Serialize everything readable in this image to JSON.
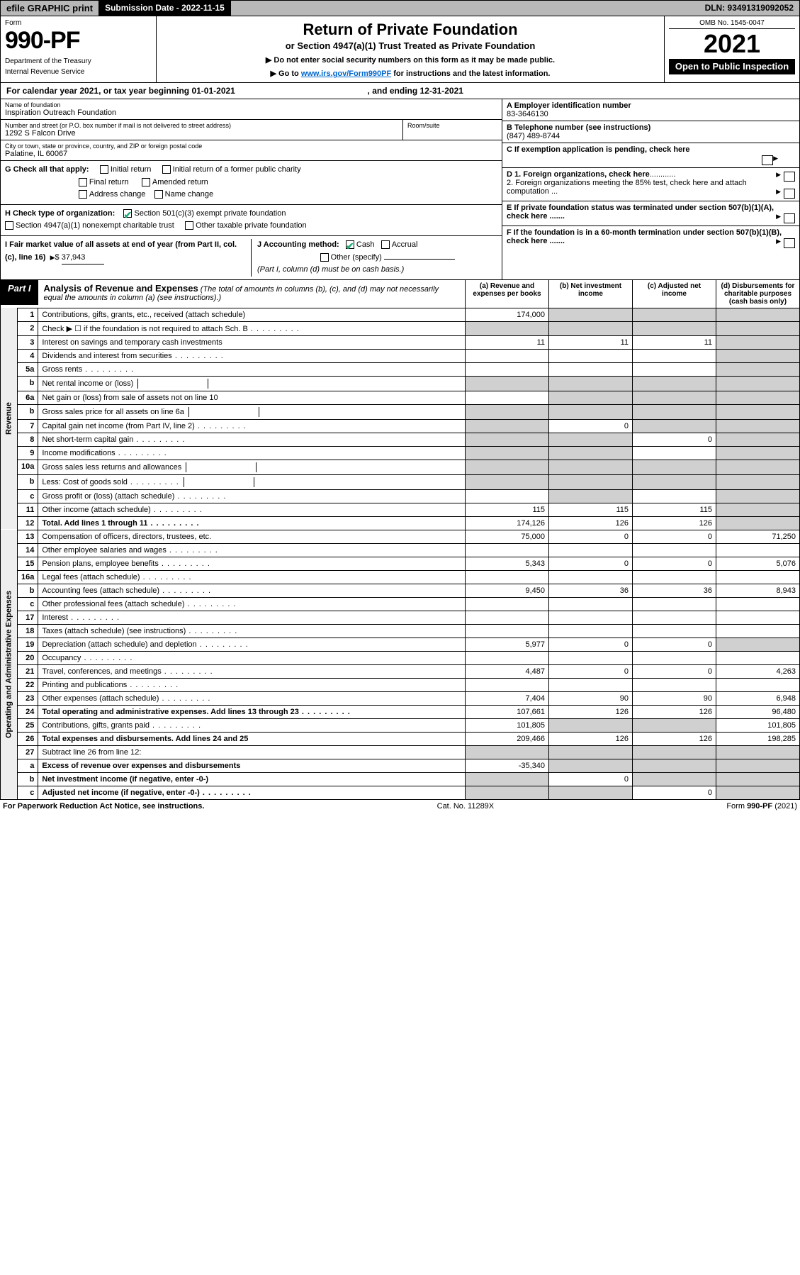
{
  "topbar": {
    "efile": "efile GRAPHIC print",
    "submission_label": "Submission Date - 2022-11-15",
    "dln_label": "DLN: 93491319092052"
  },
  "header": {
    "form_word": "Form",
    "form_number": "990-PF",
    "dept1": "Department of the Treasury",
    "dept2": "Internal Revenue Service",
    "title": "Return of Private Foundation",
    "subtitle": "or Section 4947(a)(1) Trust Treated as Private Foundation",
    "note1": "▶ Do not enter social security numbers on this form as it may be made public.",
    "note2_pre": "▶ Go to ",
    "note2_link": "www.irs.gov/Form990PF",
    "note2_post": " for instructions and the latest information.",
    "omb": "OMB No. 1545-0047",
    "year": "2021",
    "open_public": "Open to Public Inspection"
  },
  "calyear": {
    "text_pre": "For calendar year 2021, or tax year beginning ",
    "begin": "01-01-2021",
    "text_mid": ", and ending ",
    "end": "12-31-2021"
  },
  "entity": {
    "name_label": "Name of foundation",
    "name": "Inspiration Outreach Foundation",
    "addr_label": "Number and street (or P.O. box number if mail is not delivered to street address)",
    "addr": "1292 S Falcon Drive",
    "room_label": "Room/suite",
    "city_label": "City or town, state or province, country, and ZIP or foreign postal code",
    "city": "Palatine, IL  60067",
    "a_label": "A Employer identification number",
    "a_val": "83-3646130",
    "b_label": "B Telephone number (see instructions)",
    "b_val": "(847) 489-8744",
    "c_label": "C If exemption application is pending, check here",
    "d1_label": "D 1. Foreign organizations, check here",
    "d2_label": "2. Foreign organizations meeting the 85% test, check here and attach computation ...",
    "e_label": "E  If private foundation status was terminated under section 507(b)(1)(A), check here .......",
    "f_label": "F  If the foundation is in a 60-month termination under section 507(b)(1)(B), check here .......",
    "g_label": "G Check all that apply:",
    "g_opts": [
      "Initial return",
      "Initial return of a former public charity",
      "Final return",
      "Amended return",
      "Address change",
      "Name change"
    ],
    "h_label": "H Check type of organization:",
    "h_opt1": "Section 501(c)(3) exempt private foundation",
    "h_opt2": "Section 4947(a)(1) nonexempt charitable trust",
    "h_opt3": "Other taxable private foundation",
    "i_label_1": "I Fair market value of all assets at end of year (from Part II, col. (c), line 16)",
    "i_val": "37,943",
    "j_label": "J Accounting method:",
    "j_cash": "Cash",
    "j_accrual": "Accrual",
    "j_other": "Other (specify)",
    "j_note": "(Part I, column (d) must be on cash basis.)"
  },
  "part1": {
    "badge": "Part I",
    "title": "Analysis of Revenue and Expenses",
    "note": "(The total of amounts in columns (b), (c), and (d) may not necessarily equal the amounts in column (a) (see instructions).)",
    "col_a": "(a)   Revenue and expenses per books",
    "col_b": "(b)   Net investment income",
    "col_c": "(c)   Adjusted net income",
    "col_d": "(d)   Disbursements for charitable purposes (cash basis only)"
  },
  "side": {
    "revenue": "Revenue",
    "expenses": "Operating and Administrative Expenses"
  },
  "rows": [
    {
      "n": "1",
      "desc": "Contributions, gifts, grants, etc., received (attach schedule)",
      "a": "174,000",
      "b": "",
      "c": "",
      "d": "",
      "d_shade": true,
      "b_shade": true,
      "c_shade": true
    },
    {
      "n": "2",
      "desc": "Check ▶ ☐ if the foundation is not required to attach Sch. B",
      "a": "",
      "b": "",
      "c": "",
      "d": "",
      "a_shade": true,
      "b_shade": true,
      "c_shade": true,
      "d_shade": true,
      "dots": true
    },
    {
      "n": "3",
      "desc": "Interest on savings and temporary cash investments",
      "a": "11",
      "b": "11",
      "c": "11",
      "d": "",
      "d_shade": true
    },
    {
      "n": "4",
      "desc": "Dividends and interest from securities",
      "a": "",
      "b": "",
      "c": "",
      "d": "",
      "d_shade": true,
      "dots": true
    },
    {
      "n": "5a",
      "desc": "Gross rents",
      "a": "",
      "b": "",
      "c": "",
      "d": "",
      "d_shade": true,
      "dots": true
    },
    {
      "n": "b",
      "desc": "Net rental income or (loss)",
      "a": "",
      "b": "",
      "c": "",
      "d": "",
      "a_shade": true,
      "b_shade": true,
      "c_shade": true,
      "d_shade": true,
      "inline": true
    },
    {
      "n": "6a",
      "desc": "Net gain or (loss) from sale of assets not on line 10",
      "a": "",
      "b": "",
      "c": "",
      "d": "",
      "b_shade": true,
      "c_shade": true,
      "d_shade": true
    },
    {
      "n": "b",
      "desc": "Gross sales price for all assets on line 6a",
      "a": "",
      "b": "",
      "c": "",
      "d": "",
      "a_shade": true,
      "b_shade": true,
      "c_shade": true,
      "d_shade": true,
      "inline": true
    },
    {
      "n": "7",
      "desc": "Capital gain net income (from Part IV, line 2)",
      "a": "",
      "b": "0",
      "c": "",
      "d": "",
      "a_shade": true,
      "c_shade": true,
      "d_shade": true,
      "dots": true
    },
    {
      "n": "8",
      "desc": "Net short-term capital gain",
      "a": "",
      "b": "",
      "c": "0",
      "d": "",
      "a_shade": true,
      "b_shade": true,
      "d_shade": true,
      "dots": true
    },
    {
      "n": "9",
      "desc": "Income modifications",
      "a": "",
      "b": "",
      "c": "",
      "d": "",
      "a_shade": true,
      "b_shade": true,
      "d_shade": true,
      "dots": true
    },
    {
      "n": "10a",
      "desc": "Gross sales less returns and allowances",
      "a": "",
      "b": "",
      "c": "",
      "d": "",
      "a_shade": true,
      "b_shade": true,
      "c_shade": true,
      "d_shade": true,
      "inline": true
    },
    {
      "n": "b",
      "desc": "Less: Cost of goods sold",
      "a": "",
      "b": "",
      "c": "",
      "d": "",
      "a_shade": true,
      "b_shade": true,
      "c_shade": true,
      "d_shade": true,
      "inline": true,
      "dots": true
    },
    {
      "n": "c",
      "desc": "Gross profit or (loss) (attach schedule)",
      "a": "",
      "b": "",
      "c": "",
      "d": "",
      "b_shade": true,
      "d_shade": true,
      "dots": true
    },
    {
      "n": "11",
      "desc": "Other income (attach schedule)",
      "a": "115",
      "b": "115",
      "c": "115",
      "d": "",
      "d_shade": true,
      "dots": true
    },
    {
      "n": "12",
      "desc": "Total. Add lines 1 through 11",
      "a": "174,126",
      "b": "126",
      "c": "126",
      "d": "",
      "d_shade": true,
      "bold": true,
      "dots": true
    },
    {
      "n": "13",
      "desc": "Compensation of officers, directors, trustees, etc.",
      "a": "75,000",
      "b": "0",
      "c": "0",
      "d": "71,250"
    },
    {
      "n": "14",
      "desc": "Other employee salaries and wages",
      "a": "",
      "b": "",
      "c": "",
      "d": "",
      "dots": true
    },
    {
      "n": "15",
      "desc": "Pension plans, employee benefits",
      "a": "5,343",
      "b": "0",
      "c": "0",
      "d": "5,076",
      "dots": true
    },
    {
      "n": "16a",
      "desc": "Legal fees (attach schedule)",
      "a": "",
      "b": "",
      "c": "",
      "d": "",
      "dots": true
    },
    {
      "n": "b",
      "desc": "Accounting fees (attach schedule)",
      "a": "9,450",
      "b": "36",
      "c": "36",
      "d": "8,943",
      "dots": true
    },
    {
      "n": "c",
      "desc": "Other professional fees (attach schedule)",
      "a": "",
      "b": "",
      "c": "",
      "d": "",
      "dots": true
    },
    {
      "n": "17",
      "desc": "Interest",
      "a": "",
      "b": "",
      "c": "",
      "d": "",
      "dots": true
    },
    {
      "n": "18",
      "desc": "Taxes (attach schedule) (see instructions)",
      "a": "",
      "b": "",
      "c": "",
      "d": "",
      "dots": true
    },
    {
      "n": "19",
      "desc": "Depreciation (attach schedule) and depletion",
      "a": "5,977",
      "b": "0",
      "c": "0",
      "d": "",
      "d_shade": true,
      "dots": true
    },
    {
      "n": "20",
      "desc": "Occupancy",
      "a": "",
      "b": "",
      "c": "",
      "d": "",
      "dots": true
    },
    {
      "n": "21",
      "desc": "Travel, conferences, and meetings",
      "a": "4,487",
      "b": "0",
      "c": "0",
      "d": "4,263",
      "dots": true
    },
    {
      "n": "22",
      "desc": "Printing and publications",
      "a": "",
      "b": "",
      "c": "",
      "d": "",
      "dots": true
    },
    {
      "n": "23",
      "desc": "Other expenses (attach schedule)",
      "a": "7,404",
      "b": "90",
      "c": "90",
      "d": "6,948",
      "dots": true
    },
    {
      "n": "24",
      "desc": "Total operating and administrative expenses. Add lines 13 through 23",
      "a": "107,661",
      "b": "126",
      "c": "126",
      "d": "96,480",
      "bold": true,
      "dots": true
    },
    {
      "n": "25",
      "desc": "Contributions, gifts, grants paid",
      "a": "101,805",
      "b": "",
      "c": "",
      "d": "101,805",
      "b_shade": true,
      "c_shade": true,
      "dots": true
    },
    {
      "n": "26",
      "desc": "Total expenses and disbursements. Add lines 24 and 25",
      "a": "209,466",
      "b": "126",
      "c": "126",
      "d": "198,285",
      "bold": true
    },
    {
      "n": "27",
      "desc": "Subtract line 26 from line 12:",
      "a": "",
      "b": "",
      "c": "",
      "d": "",
      "a_shade": true,
      "b_shade": true,
      "c_shade": true,
      "d_shade": true
    },
    {
      "n": "a",
      "desc": "Excess of revenue over expenses and disbursements",
      "a": "-35,340",
      "b": "",
      "c": "",
      "d": "",
      "b_shade": true,
      "c_shade": true,
      "d_shade": true,
      "bold": true
    },
    {
      "n": "b",
      "desc": "Net investment income (if negative, enter -0-)",
      "a": "",
      "b": "0",
      "c": "",
      "d": "",
      "a_shade": true,
      "c_shade": true,
      "d_shade": true,
      "bold": true
    },
    {
      "n": "c",
      "desc": "Adjusted net income (if negative, enter -0-)",
      "a": "",
      "b": "",
      "c": "0",
      "d": "",
      "a_shade": true,
      "b_shade": true,
      "d_shade": true,
      "bold": true,
      "dots": true
    }
  ],
  "footer": {
    "left": "For Paperwork Reduction Act Notice, see instructions.",
    "mid": "Cat. No. 11289X",
    "right_pre": "Form ",
    "right_bold": "990-PF",
    "right_post": " (2021)"
  }
}
